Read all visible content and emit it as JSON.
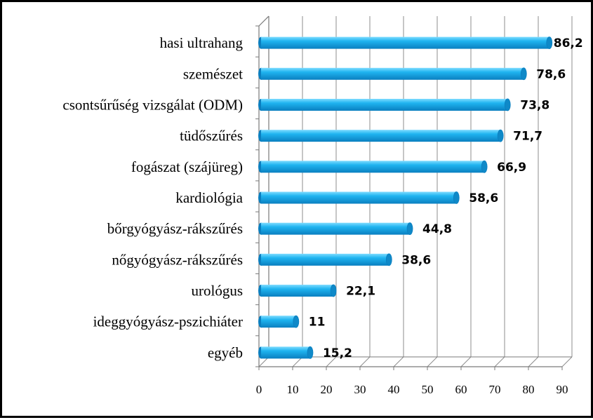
{
  "chart_data": {
    "type": "bar",
    "orientation": "horizontal",
    "style": "3d-cylinder",
    "categories": [
      "hasi ultrahang",
      "szemészet",
      "csontsűrűség vizsgálat (ODM)",
      "tüdőszűrés",
      "fogászat (szájüreg)",
      "kardiológia",
      "bőrgyógyász-rákszűrés",
      "nőgyógyász-rákszűrés",
      "urológus",
      "ideggyógyász-pszichiáter",
      "egyéb"
    ],
    "values": [
      86.2,
      78.6,
      73.8,
      71.7,
      66.9,
      58.6,
      44.8,
      38.6,
      22.1,
      11,
      15.2
    ],
    "value_labels": [
      "86,2",
      "78,6",
      "73,8",
      "71,7",
      "66,9",
      "58,6",
      "44,8",
      "38,6",
      "22,1",
      "11",
      "15,2"
    ],
    "xlim": [
      0,
      90
    ],
    "x_ticks": [
      0,
      10,
      20,
      30,
      40,
      50,
      60,
      70,
      80,
      90
    ],
    "grid": true,
    "legend": "none",
    "colors": {
      "bar_main": "#1fb4f0",
      "bar_light": "#7fdcff",
      "bar_dark": "#0a7fc0",
      "bar_cap": "#0f89c8",
      "grid": "#8c8c8c",
      "axis": "#7a7a7a"
    }
  }
}
